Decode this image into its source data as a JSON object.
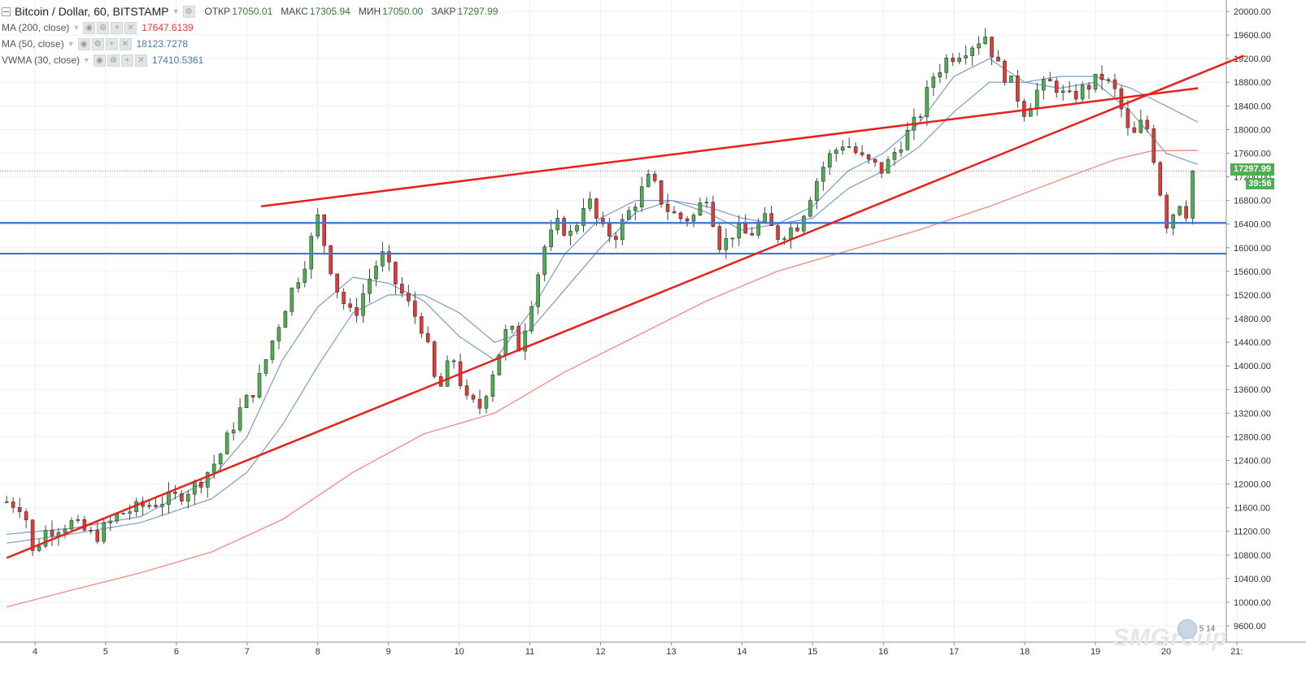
{
  "header": {
    "title": "Bitcoin / Dollar, 60, BITSTAMP",
    "ohlc": [
      {
        "label": "ОТКР",
        "value": "17050.01"
      },
      {
        "label": "МАКС",
        "value": "17305.94"
      },
      {
        "label": "МИН",
        "value": "17050.00"
      },
      {
        "label": "ЗАКР",
        "value": "17297.99"
      }
    ]
  },
  "indicators": [
    {
      "name": "MA (200, close)",
      "value": "17647.6139",
      "color": "#e53935"
    },
    {
      "name": "MA (50, close)",
      "value": "18123.7278",
      "color": "#4a7aad"
    },
    {
      "name": "VWMA (30, close)",
      "value": "17410.5361",
      "color": "#4a7aad"
    }
  ],
  "price_axis": {
    "labels": [
      "20000.00",
      "19600.00",
      "19200.00",
      "18800.00",
      "18400.00",
      "18000.00",
      "17600.00",
      "17200.00",
      "16800.00",
      "16400.00",
      "16000.00",
      "15600.00",
      "15200.00",
      "14800.00",
      "14400.00",
      "14000.00",
      "13600.00",
      "13200.00",
      "12800.00",
      "12400.00",
      "12000.00",
      "11600.00",
      "11200.00",
      "10800.00",
      "10400.00",
      "10000.00",
      "9600.00"
    ],
    "last_price": "17297.99",
    "countdown": "39:56"
  },
  "time_axis": {
    "labels": [
      "4",
      "5",
      "6",
      "7",
      "8",
      "9",
      "10",
      "11",
      "12",
      "13",
      "14",
      "15",
      "16",
      "17",
      "18",
      "19",
      "20",
      "21:"
    ]
  },
  "watermark": {
    "number": "5 14",
    "logo_text": "SMGroup"
  },
  "colors": {
    "up": "#4caf50",
    "down": "#e53935",
    "trendline": "#e8201b",
    "support": "#3a78d6",
    "ma200": "#f08077",
    "ma50": "#7a9cc4",
    "vwma": "#7a9cc4",
    "grid": "#eef0f3"
  },
  "chart_data": {
    "type": "candlestick",
    "title": "Bitcoin / Dollar, 60, BITSTAMP",
    "ylim": [
      9400,
      20100
    ],
    "x_unit": "days (Dec)",
    "xlim": [
      3.6,
      21.1
    ],
    "candles_path": [
      [
        3.6,
        11700
      ],
      [
        3.85,
        11620
      ],
      [
        3.95,
        10800
      ],
      [
        4.15,
        11200
      ],
      [
        4.5,
        11350
      ],
      [
        4.85,
        11100
      ],
      [
        5.2,
        11500
      ],
      [
        5.6,
        11650
      ],
      [
        6.0,
        11780
      ],
      [
        6.3,
        12000
      ],
      [
        6.6,
        12450
      ],
      [
        6.9,
        13250
      ],
      [
        7.15,
        13700
      ],
      [
        7.35,
        14400
      ],
      [
        7.6,
        15200
      ],
      [
        7.8,
        15700
      ],
      [
        8.0,
        16500
      ],
      [
        8.15,
        15800
      ],
      [
        8.3,
        15200
      ],
      [
        8.5,
        14800
      ],
      [
        8.7,
        15400
      ],
      [
        8.9,
        15900
      ],
      [
        9.1,
        15400
      ],
      [
        9.3,
        15000
      ],
      [
        9.5,
        14600
      ],
      [
        9.7,
        13500
      ],
      [
        9.9,
        14200
      ],
      [
        10.1,
        13400
      ],
      [
        10.3,
        13300
      ],
      [
        10.5,
        14000
      ],
      [
        10.7,
        14700
      ],
      [
        10.85,
        14300
      ],
      [
        11.0,
        15000
      ],
      [
        11.2,
        16000
      ],
      [
        11.4,
        16400
      ],
      [
        11.6,
        16200
      ],
      [
        11.8,
        16900
      ],
      [
        12.0,
        16300
      ],
      [
        12.2,
        16200
      ],
      [
        12.45,
        16700
      ],
      [
        12.7,
        17200
      ],
      [
        12.9,
        16700
      ],
      [
        13.1,
        16500
      ],
      [
        13.3,
        16500
      ],
      [
        13.5,
        16900
      ],
      [
        13.7,
        16000
      ],
      [
        13.9,
        16300
      ],
      [
        14.1,
        16200
      ],
      [
        14.3,
        16500
      ],
      [
        14.5,
        16200
      ],
      [
        14.8,
        16400
      ],
      [
        15.0,
        17000
      ],
      [
        15.2,
        17500
      ],
      [
        15.45,
        17800
      ],
      [
        15.7,
        17500
      ],
      [
        16.0,
        17300
      ],
      [
        16.2,
        17700
      ],
      [
        16.5,
        18200
      ],
      [
        16.7,
        18900
      ],
      [
        16.9,
        19200
      ],
      [
        17.2,
        19400
      ],
      [
        17.45,
        19600
      ],
      [
        17.6,
        19100
      ],
      [
        17.8,
        18800
      ],
      [
        18.0,
        18300
      ],
      [
        18.2,
        18700
      ],
      [
        18.4,
        18800
      ],
      [
        18.6,
        18500
      ],
      [
        18.85,
        18700
      ],
      [
        19.1,
        18900
      ],
      [
        19.3,
        18600
      ],
      [
        19.5,
        17800
      ],
      [
        19.7,
        18200
      ],
      [
        19.85,
        17400
      ],
      [
        20.0,
        16400
      ],
      [
        20.2,
        16800
      ],
      [
        20.35,
        16450
      ],
      [
        20.45,
        17298
      ]
    ],
    "series": [
      {
        "name": "MA (200, close)",
        "last_value": 17647.6139,
        "points": [
          [
            3.6,
            9920
          ],
          [
            4.5,
            10200
          ],
          [
            5.5,
            10500
          ],
          [
            6.5,
            10850
          ],
          [
            7.5,
            11400
          ],
          [
            8.5,
            12200
          ],
          [
            9.5,
            12850
          ],
          [
            10.5,
            13200
          ],
          [
            11.5,
            13900
          ],
          [
            12.5,
            14500
          ],
          [
            13.5,
            15100
          ],
          [
            14.5,
            15600
          ],
          [
            15.5,
            15950
          ],
          [
            16.5,
            16300
          ],
          [
            17.5,
            16700
          ],
          [
            18.5,
            17150
          ],
          [
            19.3,
            17500
          ],
          [
            19.8,
            17640
          ],
          [
            20.45,
            17648
          ]
        ]
      },
      {
        "name": "MA (50, close)",
        "last_value": 18123.7278,
        "points": [
          [
            3.6,
            11000
          ],
          [
            4.5,
            11150
          ],
          [
            5.5,
            11350
          ],
          [
            6.5,
            11750
          ],
          [
            7.0,
            12200
          ],
          [
            7.5,
            13000
          ],
          [
            8.0,
            14000
          ],
          [
            8.5,
            14900
          ],
          [
            9.0,
            15200
          ],
          [
            9.5,
            15200
          ],
          [
            10.0,
            14900
          ],
          [
            10.5,
            14400
          ],
          [
            11.0,
            14600
          ],
          [
            11.5,
            15300
          ],
          [
            12.0,
            16000
          ],
          [
            12.5,
            16600
          ],
          [
            13.0,
            16800
          ],
          [
            13.5,
            16700
          ],
          [
            14.0,
            16500
          ],
          [
            14.5,
            16400
          ],
          [
            15.0,
            16500
          ],
          [
            15.5,
            17000
          ],
          [
            16.0,
            17300
          ],
          [
            16.5,
            17700
          ],
          [
            17.0,
            18300
          ],
          [
            17.5,
            18800
          ],
          [
            18.0,
            18800
          ],
          [
            18.5,
            18900
          ],
          [
            19.0,
            18900
          ],
          [
            19.5,
            18700
          ],
          [
            20.0,
            18400
          ],
          [
            20.45,
            18124
          ]
        ]
      },
      {
        "name": "VWMA (30, close)",
        "last_value": 17410.5361,
        "points": [
          [
            3.6,
            11150
          ],
          [
            4.5,
            11250
          ],
          [
            5.5,
            11450
          ],
          [
            6.5,
            12100
          ],
          [
            7.0,
            12800
          ],
          [
            7.5,
            14100
          ],
          [
            8.0,
            15000
          ],
          [
            8.5,
            15500
          ],
          [
            9.0,
            15400
          ],
          [
            9.5,
            15100
          ],
          [
            10.0,
            14500
          ],
          [
            10.5,
            14100
          ],
          [
            11.0,
            14900
          ],
          [
            11.5,
            15900
          ],
          [
            12.0,
            16500
          ],
          [
            12.5,
            16800
          ],
          [
            13.0,
            16800
          ],
          [
            13.5,
            16600
          ],
          [
            14.0,
            16300
          ],
          [
            14.5,
            16400
          ],
          [
            15.0,
            16700
          ],
          [
            15.5,
            17300
          ],
          [
            16.0,
            17600
          ],
          [
            16.5,
            18100
          ],
          [
            17.0,
            18900
          ],
          [
            17.5,
            19200
          ],
          [
            18.0,
            18800
          ],
          [
            18.5,
            18700
          ],
          [
            19.0,
            18800
          ],
          [
            19.5,
            18300
          ],
          [
            20.0,
            17600
          ],
          [
            20.45,
            17410
          ]
        ]
      }
    ],
    "trendlines": [
      {
        "kind": "rising_support",
        "from": [
          3.6,
          10750
        ],
        "to": [
          21.1,
          19250
        ]
      },
      {
        "kind": "upper_resistance",
        "from": [
          7.2,
          16700
        ],
        "to": [
          20.45,
          18700
        ]
      }
    ],
    "horizontal_levels": [
      16420,
      15900
    ],
    "last_price": 17297.99
  }
}
